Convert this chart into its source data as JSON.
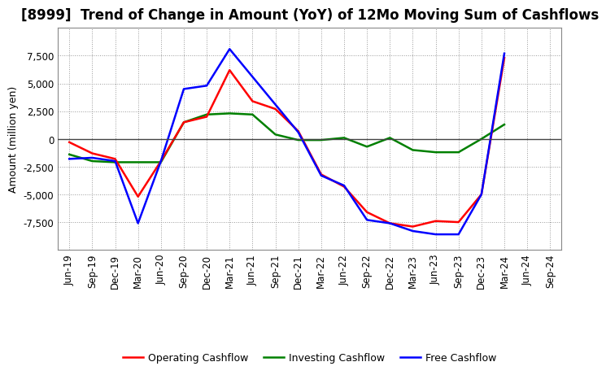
{
  "title": "[8999]  Trend of Change in Amount (YoY) of 12Mo Moving Sum of Cashflows",
  "ylabel": "Amount (million yen)",
  "x_labels": [
    "Jun-19",
    "Sep-19",
    "Dec-19",
    "Mar-20",
    "Jun-20",
    "Sep-20",
    "Dec-20",
    "Mar-21",
    "Jun-21",
    "Sep-21",
    "Dec-21",
    "Mar-22",
    "Jun-22",
    "Sep-22",
    "Dec-22",
    "Mar-23",
    "Jun-23",
    "Sep-23",
    "Dec-23",
    "Mar-24",
    "Jun-24",
    "Sep-24"
  ],
  "operating": [
    -300,
    -1300,
    -1800,
    -5200,
    -2000,
    1500,
    2000,
    6200,
    3400,
    2700,
    700,
    -3200,
    -4300,
    -6600,
    -7600,
    -7900,
    -7400,
    -7500,
    -5000,
    7300,
    null,
    null
  ],
  "investing": [
    -1400,
    -2000,
    -2100,
    -2100,
    -2100,
    1500,
    2200,
    2300,
    2200,
    400,
    -100,
    -100,
    100,
    -700,
    100,
    -1000,
    -1200,
    -1200,
    0,
    1300,
    null,
    null
  ],
  "free": [
    -1800,
    -1700,
    -2000,
    -7600,
    -2000,
    4500,
    4800,
    8100,
    5600,
    3100,
    600,
    -3300,
    -4200,
    -7300,
    -7600,
    -8300,
    -8600,
    -8600,
    -5000,
    7700,
    null,
    null
  ],
  "operating_color": "#ff0000",
  "investing_color": "#008000",
  "free_color": "#0000ff",
  "ylim": [
    -10000,
    10000
  ],
  "yticks": [
    -7500,
    -5000,
    -2500,
    0,
    2500,
    5000,
    7500
  ],
  "background_color": "#ffffff",
  "grid_color": "#999999",
  "legend_labels": [
    "Operating Cashflow",
    "Investing Cashflow",
    "Free Cashflow"
  ],
  "title_fontsize": 12,
  "axis_fontsize": 9,
  "tick_fontsize": 8.5,
  "linewidth": 1.8
}
